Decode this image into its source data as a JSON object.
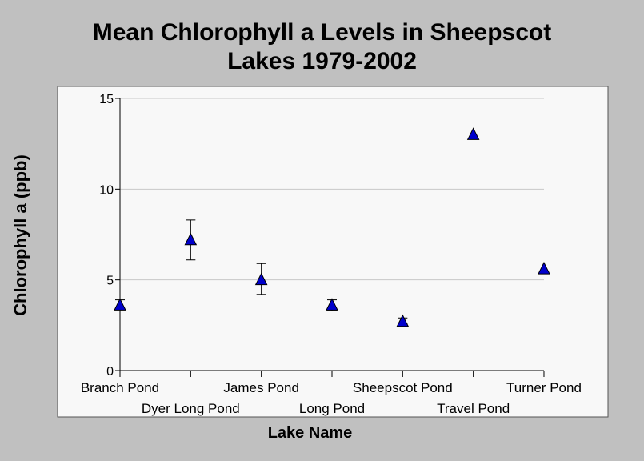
{
  "chart_data": {
    "type": "scatter",
    "title": "Mean Chlorophyll a Levels in Sheepscot Lakes 1979-2002",
    "title_lines": [
      "Mean Chlorophyll a Levels in Sheepscot",
      "Lakes 1979-2002"
    ],
    "xlabel": "Lake Name",
    "ylabel": "Chlorophyll a (ppb)",
    "ylim": [
      0,
      15
    ],
    "yticks": [
      "0",
      "5",
      "10",
      "15"
    ],
    "grid": true,
    "categories": [
      "Branch Pond",
      "Dyer Long Pond",
      "James Pond",
      "Long Pond",
      "Sheepscot Pond",
      "Travel Pond",
      "Turner Pond"
    ],
    "values": [
      3.6,
      7.2,
      5.0,
      3.6,
      2.7,
      13.0,
      5.6
    ],
    "error_low": [
      3.4,
      6.1,
      4.2,
      3.3,
      2.6,
      13.0,
      5.6
    ],
    "error_high": [
      3.9,
      8.3,
      5.9,
      3.9,
      2.9,
      13.0,
      5.6
    ],
    "marker_color": "#0000cc",
    "colors": {
      "background": "#c0c0c0",
      "plot_background": "#f8f8f8",
      "grid": "#c8c8c8"
    }
  }
}
